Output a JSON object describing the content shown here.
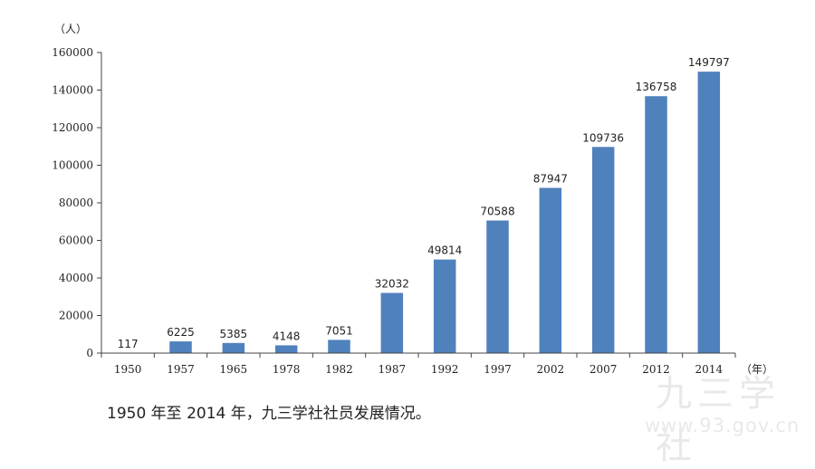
{
  "chart_data": {
    "type": "bar",
    "categories": [
      "1950",
      "1957",
      "1965",
      "1978",
      "1982",
      "1987",
      "1992",
      "1997",
      "2002",
      "2007",
      "2012",
      "2014"
    ],
    "values": [
      117,
      6225,
      5385,
      4148,
      7051,
      32032,
      49814,
      70588,
      87947,
      109736,
      136758,
      149797
    ],
    "data_labels": [
      "117",
      "6225",
      "5385",
      "4148",
      "7051",
      "32032",
      "49814",
      "70588",
      "87947",
      "109736",
      "136758",
      "149797"
    ],
    "y_ticks": [
      "0",
      "20000",
      "40000",
      "60000",
      "80000",
      "100000",
      "120000",
      "140000",
      "160000"
    ],
    "y_unit": "（人）",
    "x_unit": "（年）",
    "ylim": [
      0,
      160000
    ],
    "bar_color": "#4f81bd",
    "grid": false,
    "legend": "none"
  },
  "caption": "1950 年至 2014 年，九三学社社员发展情况。",
  "watermark": {
    "text": "九三学社",
    "url": "www.93.gov.cn"
  }
}
